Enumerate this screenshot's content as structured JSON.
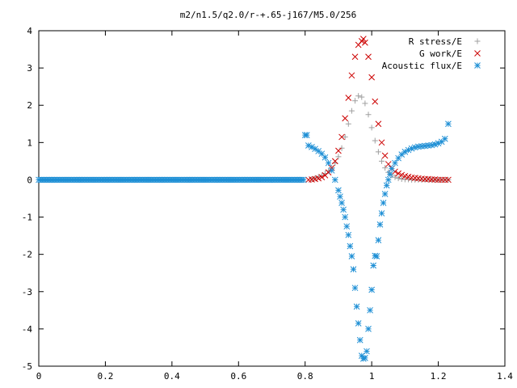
{
  "chart_data": {
    "type": "scatter",
    "title": "m2/n1.5/q2.0/r-+.65-j167/M5.0/256",
    "xlabel": "",
    "ylabel": "",
    "xlim": [
      0,
      1.4
    ],
    "ylim": [
      -5,
      4
    ],
    "x_ticks": [
      "0",
      "0.2",
      "0.4",
      "0.6",
      "0.8",
      "1",
      "1.2",
      "1.4"
    ],
    "y_ticks": [
      "4",
      "3",
      "2",
      "1",
      "0",
      "-1",
      "-2",
      "-3",
      "-4",
      "-5"
    ],
    "grid": false,
    "legend_position": "top-right",
    "series": [
      {
        "name": "R stress/E",
        "marker": "plus",
        "color": "#a0a0a0",
        "x": [
          0.82,
          0.83,
          0.84,
          0.85,
          0.86,
          0.87,
          0.88,
          0.89,
          0.9,
          0.91,
          0.92,
          0.93,
          0.94,
          0.95,
          0.96,
          0.97,
          0.98,
          0.99,
          1.0,
          1.01,
          1.02,
          1.03,
          1.04,
          1.05,
          1.06,
          1.07,
          1.08,
          1.09,
          1.1,
          1.11,
          1.12,
          1.13,
          1.14,
          1.15,
          1.16,
          1.17,
          1.18,
          1.19,
          1.2,
          1.21,
          1.22,
          1.23
        ],
        "y": [
          0.02,
          0.05,
          0.08,
          0.12,
          0.17,
          0.24,
          0.33,
          0.45,
          0.62,
          0.85,
          1.15,
          1.5,
          1.85,
          2.12,
          2.25,
          2.22,
          2.05,
          1.75,
          1.4,
          1.05,
          0.75,
          0.5,
          0.32,
          0.2,
          0.12,
          0.07,
          0.04,
          0.02,
          0.01,
          0.01,
          0.0,
          0.0,
          0.0,
          0.0,
          0.0,
          0.0,
          0.0,
          0.0,
          0.0,
          0.0,
          0.0,
          0.0
        ]
      },
      {
        "name": "G work/E",
        "marker": "cross",
        "color": "#cc0000",
        "x": [
          0.81,
          0.82,
          0.83,
          0.84,
          0.85,
          0.86,
          0.87,
          0.88,
          0.89,
          0.9,
          0.91,
          0.92,
          0.93,
          0.94,
          0.95,
          0.96,
          0.97,
          0.975,
          0.98,
          0.99,
          1.0,
          1.01,
          1.02,
          1.03,
          1.04,
          1.05,
          1.06,
          1.07,
          1.08,
          1.09,
          1.1,
          1.11,
          1.12,
          1.13,
          1.14,
          1.15,
          1.16,
          1.17,
          1.18,
          1.19,
          1.2,
          1.21,
          1.22,
          1.23
        ],
        "y": [
          0.0,
          0.01,
          0.02,
          0.04,
          0.07,
          0.12,
          0.2,
          0.32,
          0.5,
          0.78,
          1.15,
          1.65,
          2.2,
          2.8,
          3.3,
          3.62,
          3.72,
          3.78,
          3.68,
          3.3,
          2.75,
          2.1,
          1.5,
          1.0,
          0.65,
          0.42,
          0.3,
          0.22,
          0.17,
          0.13,
          0.1,
          0.08,
          0.06,
          0.05,
          0.04,
          0.03,
          0.02,
          0.02,
          0.01,
          0.01,
          0.0,
          0.0,
          0.0,
          0.0
        ]
      },
      {
        "name": "Acoustic flux/E",
        "marker": "asterisk",
        "color": "#1e8fd5",
        "x": [
          0.8,
          0.805,
          0.81,
          0.82,
          0.83,
          0.84,
          0.85,
          0.86,
          0.87,
          0.88,
          0.89,
          0.9,
          0.905,
          0.91,
          0.915,
          0.92,
          0.925,
          0.93,
          0.935,
          0.94,
          0.945,
          0.95,
          0.955,
          0.96,
          0.965,
          0.97,
          0.975,
          0.98,
          0.985,
          0.99,
          0.995,
          1.0,
          1.005,
          1.01,
          1.015,
          1.02,
          1.025,
          1.03,
          1.035,
          1.04,
          1.045,
          1.05,
          1.055,
          1.06,
          1.07,
          1.08,
          1.09,
          1.1,
          1.11,
          1.12,
          1.13,
          1.14,
          1.15,
          1.16,
          1.17,
          1.18,
          1.19,
          1.2,
          1.21,
          1.22,
          1.23
        ],
        "y": [
          1.2,
          1.2,
          0.92,
          0.88,
          0.83,
          0.77,
          0.7,
          0.6,
          0.45,
          0.25,
          0.0,
          -0.28,
          -0.45,
          -0.62,
          -0.8,
          -1.0,
          -1.25,
          -1.48,
          -1.78,
          -2.05,
          -2.4,
          -2.9,
          -3.4,
          -3.85,
          -4.3,
          -4.72,
          -4.8,
          -4.78,
          -4.6,
          -4.0,
          -3.5,
          -2.95,
          -2.3,
          -2.04,
          -2.05,
          -1.62,
          -1.2,
          -0.9,
          -0.62,
          -0.38,
          -0.15,
          0.0,
          0.15,
          0.3,
          0.45,
          0.58,
          0.68,
          0.75,
          0.8,
          0.84,
          0.87,
          0.89,
          0.9,
          0.91,
          0.92,
          0.93,
          0.95,
          0.98,
          1.02,
          1.1,
          1.5
        ]
      },
      {
        "name": "",
        "marker": "line",
        "color": "#1e8fd5",
        "x": [
          0.0,
          0.05,
          0.1,
          0.15,
          0.2,
          0.25,
          0.3,
          0.35,
          0.4,
          0.45,
          0.5,
          0.55,
          0.6,
          0.65,
          0.7,
          0.75,
          0.8
        ],
        "y": [
          0,
          0,
          0,
          0,
          0,
          0,
          0,
          0,
          0,
          0,
          0,
          0,
          0,
          0,
          0,
          0,
          0
        ]
      }
    ]
  }
}
